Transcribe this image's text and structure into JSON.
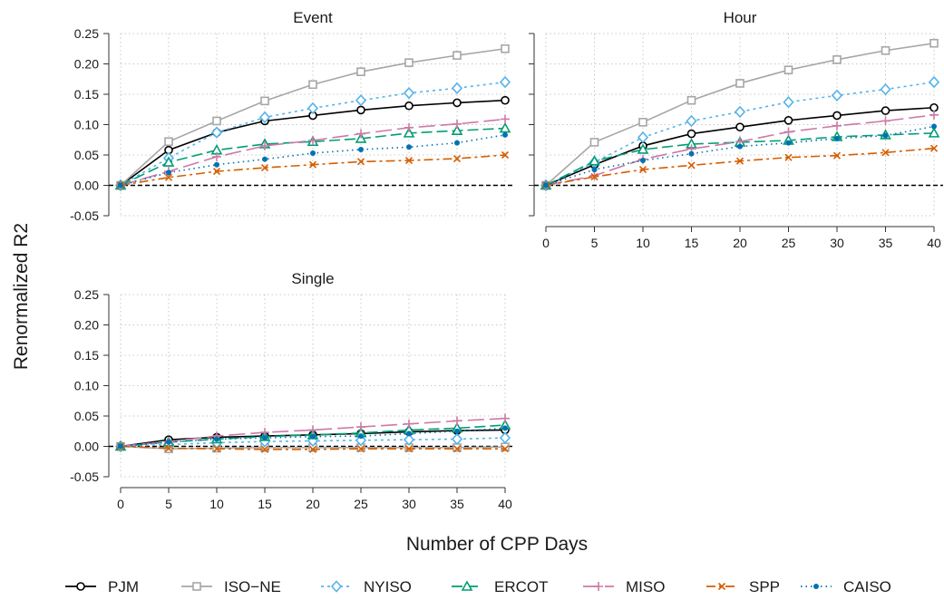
{
  "chart_data": {
    "type": "line",
    "xlabel": "Number of CPP Days",
    "ylabel": "Renormalized R2",
    "x": [
      0,
      5,
      10,
      15,
      20,
      25,
      30,
      35,
      40
    ],
    "xlim": [
      0,
      40
    ],
    "ylim": [
      -0.05,
      0.25
    ],
    "x_ticks": [
      "0",
      "5",
      "10",
      "15",
      "20",
      "25",
      "30",
      "35",
      "40"
    ],
    "y_ticks": [
      "-0.05",
      "0.00",
      "0.05",
      "0.10",
      "0.15",
      "0.20",
      "0.25"
    ],
    "grid": "dotted",
    "reference_line": 0,
    "legend_position": "bottom",
    "series_styles": [
      {
        "name": "PJM",
        "color": "#000000",
        "dash": "",
        "marker": "circle-open"
      },
      {
        "name": "ISO−NE",
        "color": "#a6a6a6",
        "dash": "",
        "marker": "square-open"
      },
      {
        "name": "NYISO",
        "color": "#56b4e9",
        "dash": "3,4",
        "marker": "diamond-open"
      },
      {
        "name": "ERCOT",
        "color": "#009e73",
        "dash": "12,5",
        "marker": "triangle-open"
      },
      {
        "name": "MISO",
        "color": "#cc79a7",
        "dash": "18,6",
        "marker": "plus"
      },
      {
        "name": "SPP",
        "color": "#d55e00",
        "dash": "10,4,3,4",
        "marker": "x"
      },
      {
        "name": "CAISO",
        "color": "#0072b2",
        "dash": "1.5,4",
        "marker": "dot"
      }
    ],
    "panels": [
      {
        "title": "Event",
        "series": [
          {
            "name": "PJM",
            "values": [
              0,
              0.058,
              0.087,
              0.106,
              0.115,
              0.124,
              0.131,
              0.136,
              0.14
            ]
          },
          {
            "name": "ISO−NE",
            "values": [
              0,
              0.072,
              0.106,
              0.139,
              0.166,
              0.187,
              0.202,
              0.214,
              0.225
            ]
          },
          {
            "name": "NYISO",
            "values": [
              0,
              0.045,
              0.087,
              0.112,
              0.127,
              0.14,
              0.152,
              0.16,
              0.17
            ]
          },
          {
            "name": "ERCOT",
            "values": [
              0,
              0.038,
              0.058,
              0.068,
              0.072,
              0.077,
              0.086,
              0.09,
              0.094
            ]
          },
          {
            "name": "MISO",
            "values": [
              0,
              0.023,
              0.047,
              0.065,
              0.074,
              0.085,
              0.095,
              0.101,
              0.109
            ]
          },
          {
            "name": "SPP",
            "values": [
              0,
              0.013,
              0.023,
              0.029,
              0.034,
              0.039,
              0.041,
              0.044,
              0.05
            ]
          },
          {
            "name": "CAISO",
            "values": [
              0,
              0.021,
              0.034,
              0.043,
              0.053,
              0.059,
              0.063,
              0.07,
              0.083
            ]
          }
        ]
      },
      {
        "title": "Hour",
        "series": [
          {
            "name": "PJM",
            "values": [
              0,
              0.034,
              0.065,
              0.085,
              0.096,
              0.107,
              0.115,
              0.123,
              0.128
            ]
          },
          {
            "name": "ISO−NE",
            "values": [
              0,
              0.071,
              0.104,
              0.14,
              0.168,
              0.19,
              0.207,
              0.222,
              0.234
            ]
          },
          {
            "name": "NYISO",
            "values": [
              0,
              0.038,
              0.079,
              0.106,
              0.121,
              0.137,
              0.148,
              0.158,
              0.17
            ]
          },
          {
            "name": "ERCOT",
            "values": [
              0,
              0.04,
              0.059,
              0.068,
              0.071,
              0.074,
              0.08,
              0.083,
              0.086
            ]
          },
          {
            "name": "MISO",
            "values": [
              0,
              0.016,
              0.043,
              0.06,
              0.072,
              0.088,
              0.098,
              0.106,
              0.116
            ]
          },
          {
            "name": "SPP",
            "values": [
              0,
              0.014,
              0.026,
              0.033,
              0.04,
              0.046,
              0.049,
              0.054,
              0.061
            ]
          },
          {
            "name": "CAISO",
            "values": [
              0,
              0.026,
              0.041,
              0.052,
              0.064,
              0.07,
              0.077,
              0.082,
              0.097
            ]
          }
        ]
      },
      {
        "title": "Single",
        "series": [
          {
            "name": "PJM",
            "values": [
              0,
              0.011,
              0.015,
              0.017,
              0.019,
              0.021,
              0.024,
              0.026,
              0.027
            ]
          },
          {
            "name": "ISO−NE",
            "values": [
              0,
              -0.004,
              -0.003,
              -0.002,
              -0.002,
              -0.002,
              -0.002,
              -0.002,
              -0.001
            ]
          },
          {
            "name": "NYISO",
            "values": [
              0,
              0.003,
              0.006,
              0.008,
              0.009,
              0.01,
              0.011,
              0.012,
              0.014
            ]
          },
          {
            "name": "ERCOT",
            "values": [
              0,
              0.007,
              0.012,
              0.016,
              0.019,
              0.022,
              0.027,
              0.03,
              0.035
            ]
          },
          {
            "name": "MISO",
            "values": [
              0,
              0.008,
              0.017,
              0.023,
              0.027,
              0.032,
              0.037,
              0.042,
              0.046
            ]
          },
          {
            "name": "SPP",
            "values": [
              0,
              -0.003,
              -0.004,
              -0.005,
              -0.005,
              -0.004,
              -0.004,
              -0.004,
              -0.004
            ]
          },
          {
            "name": "CAISO",
            "values": [
              0,
              0.007,
              0.012,
              0.014,
              0.016,
              0.017,
              0.021,
              0.025,
              0.03
            ]
          }
        ]
      }
    ]
  }
}
